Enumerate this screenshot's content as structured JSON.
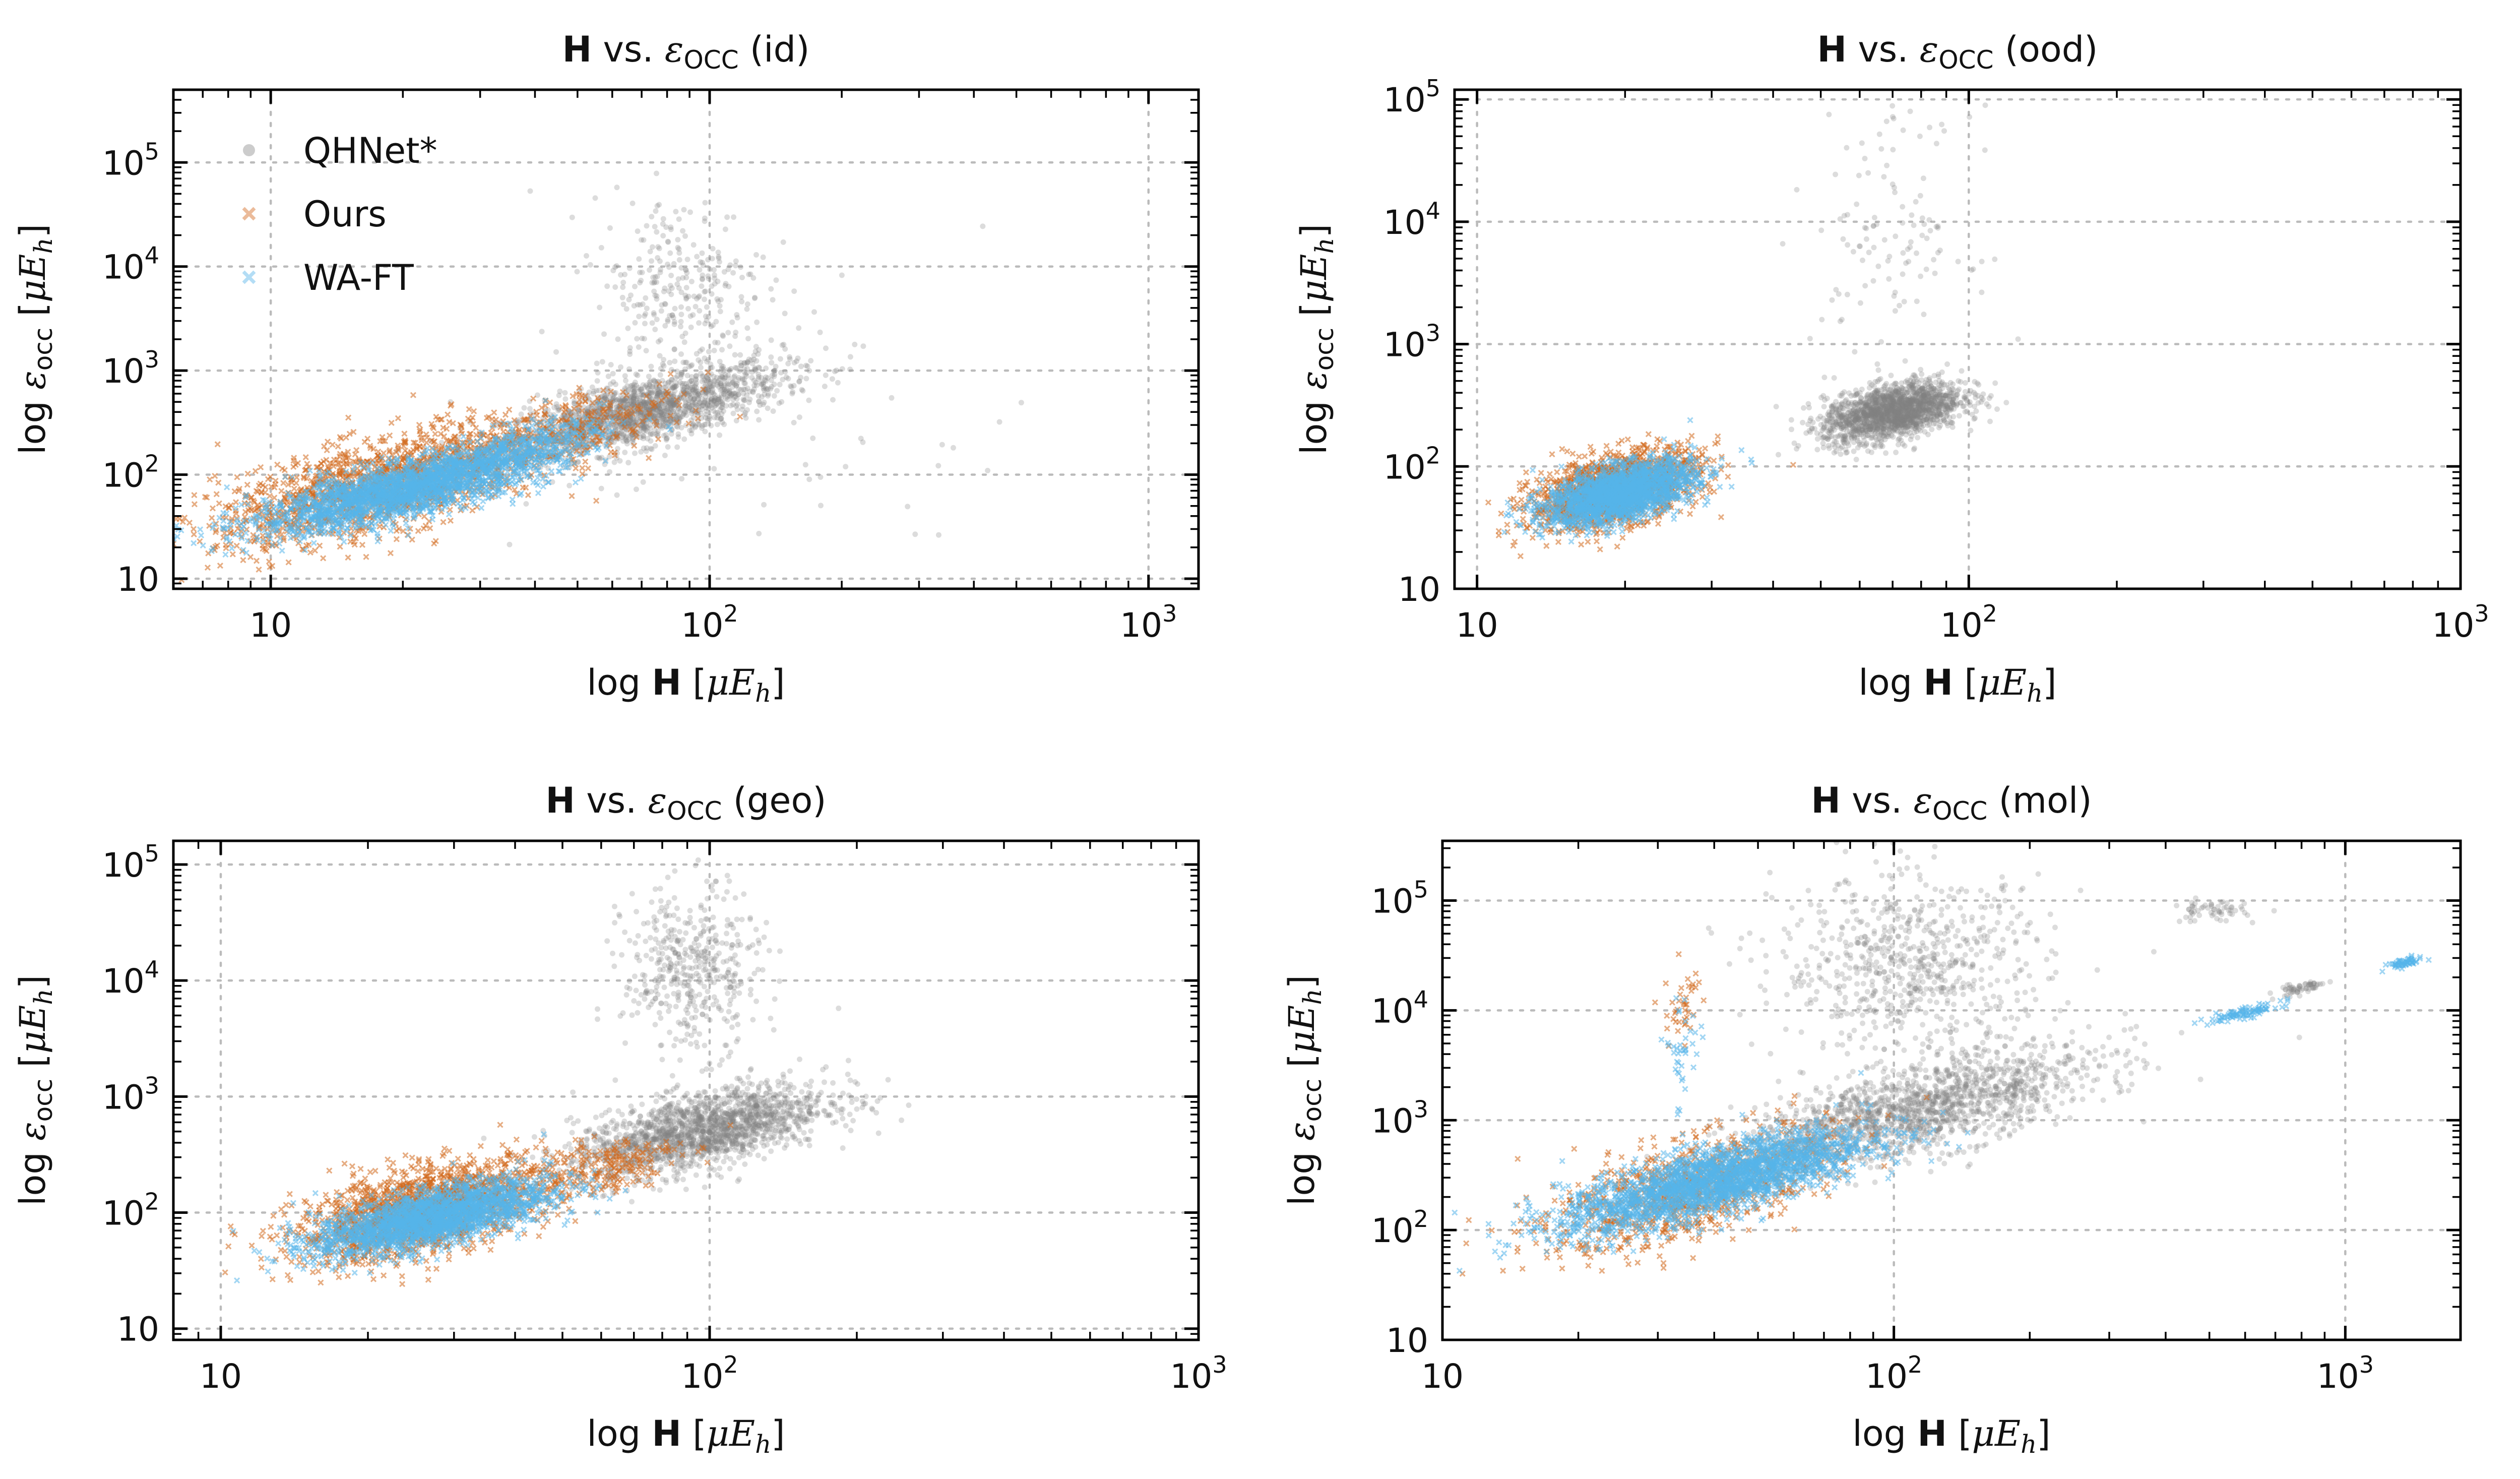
{
  "figure": {
    "legend": {
      "placement": "upper-left of first panel",
      "items": [
        {
          "label": "QHNet*",
          "marker": "o",
          "color": "#808080"
        },
        {
          "label": "Ours",
          "marker": "x",
          "color": "#D2691E"
        },
        {
          "label": "WA-FT",
          "marker": "x",
          "color": "#56B4E9"
        }
      ]
    }
  },
  "chart_data": [
    {
      "type": "scatter",
      "title_main": "H",
      "title_rest": " vs. ",
      "title_sym": "ε",
      "title_sub": "OCC",
      "title_suffix": " (id)",
      "xlabel": "log H [μE_h]",
      "ylabel": "log ε_occ [μE_h]",
      "xscale": "log",
      "yscale": "log",
      "xlim": [
        6,
        1300
      ],
      "ylim": [
        8,
        500000
      ],
      "xticks": [
        10,
        100,
        1000
      ],
      "xtick_labels": [
        "10",
        "10^2",
        "10^3"
      ],
      "yticks": [
        10,
        100,
        1000,
        10000,
        100000
      ],
      "ytick_labels": [
        "10",
        "10^2",
        "10^3",
        "10^4",
        "10^5"
      ],
      "grid": true,
      "series": [
        {
          "name": "QHNet*",
          "clusters": [
            {
              "n": 1700,
              "xc": 70,
              "xs": 0.16,
              "yc": 400,
              "ys": 0.16,
              "slope": 1.0
            },
            {
              "n": 300,
              "xc": 85,
              "xs": 0.1,
              "yc": 6000,
              "ys": 0.45,
              "slope": 0
            },
            {
              "n": 60,
              "xc": 140,
              "xs": 0.3,
              "yc": 300,
              "ys": 0.7,
              "slope": 0
            }
          ]
        },
        {
          "name": "Ours",
          "clusters": [
            {
              "n": 1600,
              "xc": 18,
              "xs": 0.19,
              "yc": 80,
              "ys": 0.22,
              "slope": 1.05
            },
            {
              "n": 250,
              "xc": 50,
              "xs": 0.12,
              "yc": 300,
              "ys": 0.15,
              "slope": 1.0
            }
          ]
        },
        {
          "name": "WA-FT",
          "clusters": [
            {
              "n": 2200,
              "xc": 20,
              "xs": 0.17,
              "yc": 70,
              "ys": 0.13,
              "slope": 0.95
            },
            {
              "n": 350,
              "xc": 36,
              "xs": 0.1,
              "yc": 180,
              "ys": 0.1,
              "slope": 1.0
            }
          ]
        }
      ]
    },
    {
      "type": "scatter",
      "title_main": "H",
      "title_rest": " vs. ",
      "title_sym": "ε",
      "title_sub": "OCC",
      "title_suffix": " (ood)",
      "xlabel": "log H [μE_h]",
      "ylabel": "log ε_occ [μE_h]",
      "xscale": "log",
      "yscale": "log",
      "xlim": [
        9,
        1000
      ],
      "ylim": [
        10,
        120000
      ],
      "xticks": [
        10,
        100,
        1000
      ],
      "xtick_labels": [
        "10",
        "10^2",
        "10^3"
      ],
      "yticks": [
        10,
        100,
        1000,
        10000,
        100000
      ],
      "ytick_labels": [
        "10",
        "10^2",
        "10^3",
        "10^4",
        "10^5"
      ],
      "grid": true,
      "series": [
        {
          "name": "QHNet*",
          "clusters": [
            {
              "n": 1800,
              "xc": 70,
              "xs": 0.07,
              "yc": 280,
              "ys": 0.11,
              "slope": 0.8
            },
            {
              "n": 120,
              "xc": 70,
              "xs": 0.08,
              "yc": 8000,
              "ys": 0.5,
              "slope": 0
            }
          ]
        },
        {
          "name": "Ours",
          "clusters": [
            {
              "n": 1500,
              "xc": 19,
              "xs": 0.085,
              "yc": 65,
              "ys": 0.14,
              "slope": 0.9
            }
          ]
        },
        {
          "name": "WA-FT",
          "clusters": [
            {
              "n": 2000,
              "xc": 19.5,
              "xs": 0.075,
              "yc": 60,
              "ys": 0.11,
              "slope": 0.9
            }
          ]
        }
      ]
    },
    {
      "type": "scatter",
      "title_main": "H",
      "title_rest": " vs. ",
      "title_sym": "ε",
      "title_sub": "OCC",
      "title_suffix": " (geo)",
      "xlabel": "log H [μE_h]",
      "ylabel": "log ε_occ [μE_h]",
      "xscale": "log",
      "yscale": "log",
      "xlim": [
        8,
        1000
      ],
      "ylim": [
        8,
        160000
      ],
      "xticks": [
        10,
        100,
        1000
      ],
      "xtick_labels": [
        "10",
        "10^2",
        "10^3"
      ],
      "yticks": [
        10,
        100,
        1000,
        10000,
        100000
      ],
      "ytick_labels": [
        "10",
        "10^2",
        "10^3",
        "10^4",
        "10^5"
      ],
      "grid": true,
      "series": [
        {
          "name": "QHNet*",
          "clusters": [
            {
              "n": 1800,
              "xc": 95,
              "xs": 0.13,
              "yc": 500,
              "ys": 0.16,
              "slope": 0.9
            },
            {
              "n": 450,
              "xc": 92,
              "xs": 0.07,
              "yc": 12000,
              "ys": 0.35,
              "slope": 0
            }
          ]
        },
        {
          "name": "Ours",
          "clusters": [
            {
              "n": 1700,
              "xc": 26,
              "xs": 0.13,
              "yc": 105,
              "ys": 0.18,
              "slope": 0.9
            },
            {
              "n": 200,
              "xc": 60,
              "xs": 0.08,
              "yc": 250,
              "ys": 0.12,
              "slope": 0.8
            }
          ]
        },
        {
          "name": "WA-FT",
          "clusters": [
            {
              "n": 2200,
              "xc": 27,
              "xs": 0.12,
              "yc": 90,
              "ys": 0.12,
              "slope": 0.9
            }
          ]
        }
      ]
    },
    {
      "type": "scatter",
      "title_main": "H",
      "title_rest": " vs. ",
      "title_sym": "ε",
      "title_sub": "OCC",
      "title_suffix": " (mol)",
      "xlabel": "log H [μE_h]",
      "ylabel": "log ε_occ [μE_h]",
      "xscale": "log",
      "yscale": "log",
      "xlim": [
        10,
        1800
      ],
      "ylim": [
        10,
        350000
      ],
      "xticks": [
        10,
        100,
        1000
      ],
      "xtick_labels": [
        "10",
        "10^2",
        "10^3"
      ],
      "yticks": [
        10,
        100,
        1000,
        10000,
        100000
      ],
      "ytick_labels": [
        "10",
        "10^2",
        "10^3",
        "10^4",
        "10^5"
      ],
      "grid": true,
      "series": [
        {
          "name": "QHNet*",
          "clusters": [
            {
              "n": 1600,
              "xc": 110,
              "xs": 0.2,
              "yc": 1200,
              "ys": 0.2,
              "slope": 1.0
            },
            {
              "n": 700,
              "xc": 110,
              "xs": 0.15,
              "yc": 25000,
              "ys": 0.4,
              "slope": 0
            },
            {
              "n": 60,
              "xc": 800,
              "xs": 0.03,
              "yc": 16000,
              "ys": 0.03,
              "slope": 0.8
            },
            {
              "n": 60,
              "xc": 500,
              "xs": 0.04,
              "yc": 80000,
              "ys": 0.05,
              "slope": 0
            }
          ]
        },
        {
          "name": "Ours",
          "clusters": [
            {
              "n": 900,
              "xc": 35,
              "xs": 0.16,
              "yc": 230,
              "ys": 0.22,
              "slope": 1.1
            },
            {
              "n": 40,
              "xc": 34,
              "xs": 0.02,
              "yc": 10000,
              "ys": 0.2,
              "slope": 0
            }
          ]
        },
        {
          "name": "WA-FT",
          "clusters": [
            {
              "n": 2400,
              "xc": 40,
              "xs": 0.17,
              "yc": 280,
              "ys": 0.15,
              "slope": 1.05
            },
            {
              "n": 90,
              "xc": 600,
              "xs": 0.04,
              "yc": 9500,
              "ys": 0.025,
              "slope": 0.8
            },
            {
              "n": 60,
              "xc": 1350,
              "xs": 0.02,
              "yc": 27000,
              "ys": 0.02,
              "slope": 0.8
            },
            {
              "n": 40,
              "xc": 34,
              "xs": 0.02,
              "yc": 4000,
              "ys": 0.3,
              "slope": 0
            }
          ]
        }
      ]
    }
  ]
}
